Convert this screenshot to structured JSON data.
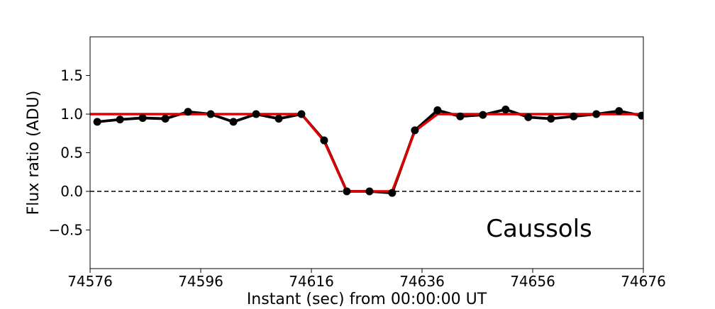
{
  "chart_data": {
    "type": "line",
    "title": "",
    "xlabel": "Instant (sec) from 00:00:00 UT",
    "ylabel": "Flux ratio (ADU)",
    "xlim": [
      74576,
      74676
    ],
    "ylim": [
      -1.0,
      2.0
    ],
    "x_ticks": [
      74576,
      74596,
      74616,
      74636,
      74656,
      74676
    ],
    "x_tick_labels": [
      "74576",
      "74596",
      "74616",
      "74636",
      "74656",
      "74676"
    ],
    "y_ticks": [
      -0.5,
      0.0,
      0.5,
      1.0,
      1.5
    ],
    "y_tick_labels": [
      "−0.5",
      "0.0",
      "0.5",
      "1.0",
      "1.5"
    ],
    "grid": false,
    "annotation": "Caussols",
    "reference_line": {
      "y": 0.0,
      "style": "dashed",
      "color": "#000000"
    },
    "series": [
      {
        "color": "#000000",
        "marker": "circle",
        "x": [
          74577.3,
          74581.4,
          74585.5,
          74589.6,
          74593.7,
          74597.8,
          74601.9,
          74606.0,
          74610.1,
          74614.2,
          74618.3,
          74622.4,
          74626.5,
          74630.6,
          74634.7,
          74638.8,
          74642.9,
          74647.0,
          74651.1,
          74655.2,
          74659.3,
          74663.4,
          74667.5,
          74671.6,
          74675.7
        ],
        "y": [
          0.9,
          0.93,
          0.95,
          0.94,
          1.03,
          1.0,
          0.9,
          1.0,
          0.94,
          1.0,
          0.66,
          0.0,
          0.0,
          -0.02,
          0.79,
          1.05,
          0.97,
          0.99,
          1.06,
          0.96,
          0.94,
          0.97,
          1.0,
          1.04,
          0.98
        ]
      },
      {
        "color": "#e00000",
        "marker": "none",
        "x": [
          74576,
          74614.2,
          74618.3,
          74622.4,
          74630.6,
          74634.7,
          74638.8,
          74676
        ],
        "y": [
          1.0,
          1.0,
          0.65,
          0.0,
          0.0,
          0.78,
          1.0,
          1.0
        ]
      }
    ]
  }
}
